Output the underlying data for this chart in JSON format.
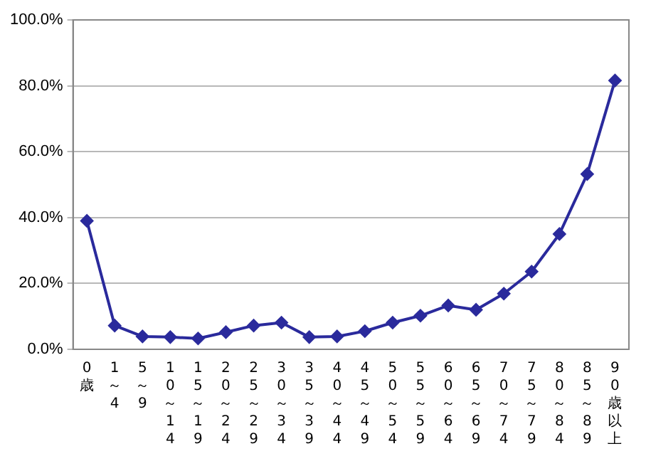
{
  "chart_data": {
    "type": "line",
    "categories": [
      "0歳",
      "1～4",
      "5～9",
      "10～14",
      "15～19",
      "20～24",
      "25～29",
      "30～34",
      "35～39",
      "40～44",
      "45～49",
      "50～54",
      "55～59",
      "60～64",
      "65～69",
      "70～74",
      "75～79",
      "80～84",
      "85～89",
      "90歳以上"
    ],
    "series": [
      {
        "color": "#2a2a9c",
        "values": [
          39.0,
          7.2,
          3.9,
          3.7,
          3.3,
          5.2,
          7.2,
          8.1,
          3.7,
          3.9,
          5.5,
          8.1,
          10.2,
          13.3,
          12.0,
          16.9,
          23.6,
          35.0,
          53.2,
          81.6
        ]
      }
    ],
    "ylim": [
      0,
      100
    ],
    "yticks": [
      {
        "value": 0,
        "label": "0.0%"
      },
      {
        "value": 20,
        "label": "20.0%"
      },
      {
        "value": 40,
        "label": "40.0%"
      },
      {
        "value": 60,
        "label": "60.0%"
      },
      {
        "value": 80,
        "label": "80.0%"
      },
      {
        "value": 100,
        "label": "100.0%"
      }
    ],
    "grid": "y",
    "legend": false,
    "marker": "diamond",
    "line_style": "solid"
  }
}
